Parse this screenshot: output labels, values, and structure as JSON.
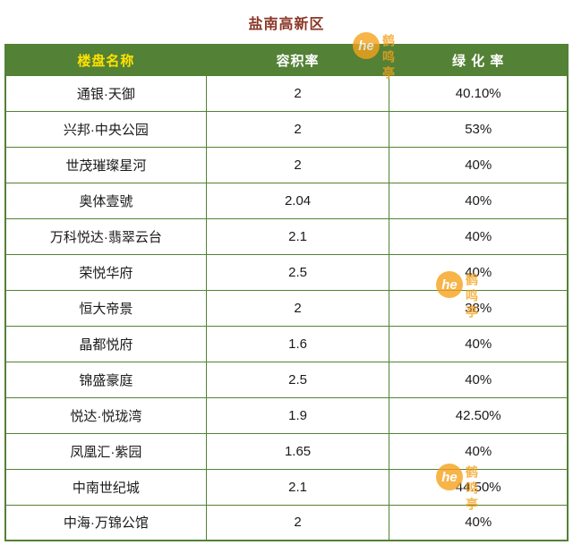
{
  "page": {
    "title": "盐南高新区"
  },
  "table": {
    "headers": [
      "楼盘名称",
      "容积率",
      "绿 化 率"
    ],
    "rows": [
      [
        "通银·天御",
        "2",
        "40.10%"
      ],
      [
        "兴邦·中央公园",
        "2",
        "53%"
      ],
      [
        "世茂璀璨星河",
        "2",
        "40%"
      ],
      [
        "奥体壹號",
        "2.04",
        "40%"
      ],
      [
        "万科悦达·翡翠云台",
        "2.1",
        "40%"
      ],
      [
        "荣悦华府",
        "2.5",
        "40%"
      ],
      [
        "恒大帝景",
        "2",
        "38%"
      ],
      [
        "晶都悦府",
        "1.6",
        "40%"
      ],
      [
        "锦盛豪庭",
        "2.5",
        "40%"
      ],
      [
        "悦达·悦珑湾",
        "1.9",
        "42.50%"
      ],
      [
        "凤凰汇·紫园",
        "1.65",
        "40%"
      ],
      [
        "中南世纪城",
        "2.1",
        "44.50%"
      ],
      [
        "中海·万锦公馆",
        "2",
        "40%"
      ]
    ]
  },
  "watermark": {
    "logo": "he",
    "name": "鹤鸣亭"
  },
  "colors": {
    "header_bg": "#538135",
    "table_border": "#538135",
    "title_color": "#8b3626",
    "header_first_text": "#ffe100",
    "header_text": "#ffffff",
    "watermark_color": "#f6a21c"
  }
}
